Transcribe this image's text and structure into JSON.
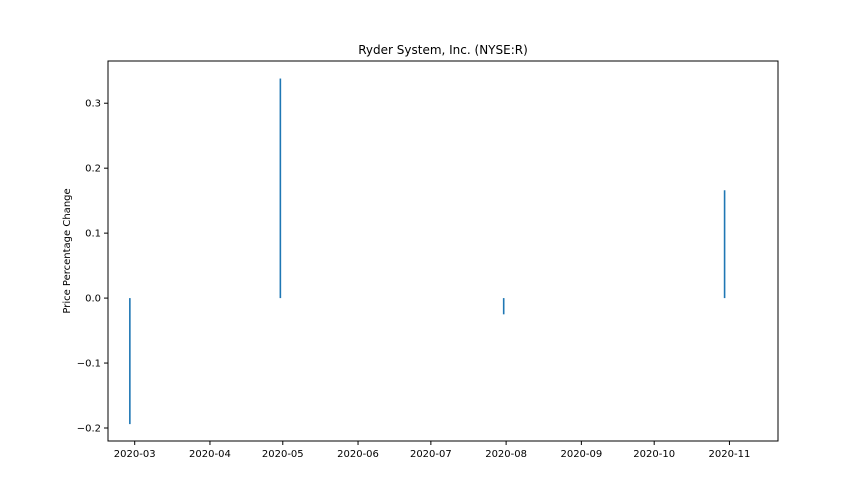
{
  "chart_data": {
    "type": "bar",
    "title": "Ryder System, Inc. (NYSE:R)",
    "xlabel": "",
    "ylabel": "Price Percentage Change",
    "ylim": [
      -0.22,
      0.365
    ],
    "xlim": [
      "2020-02-19",
      "2020-11-21"
    ],
    "grid": false,
    "legend": "none",
    "bar_color": "#1f77b4",
    "x_ticks": [
      "2020-03",
      "2020-04",
      "2020-05",
      "2020-06",
      "2020-07",
      "2020-08",
      "2020-09",
      "2020-10",
      "2020-11"
    ],
    "y_ticks": [
      -0.2,
      -0.1,
      0.0,
      0.1,
      0.2,
      0.3
    ],
    "y_tick_labels": [
      "−0.2",
      "−0.1",
      "0.0",
      "0.1",
      "0.2",
      "0.3"
    ],
    "bars": [
      {
        "date": "2020-02-28",
        "value": -0.194
      },
      {
        "date": "2020-04-30",
        "value": 0.338
      },
      {
        "date": "2020-07-31",
        "value": -0.025
      },
      {
        "date": "2020-10-30",
        "value": 0.166
      }
    ]
  }
}
